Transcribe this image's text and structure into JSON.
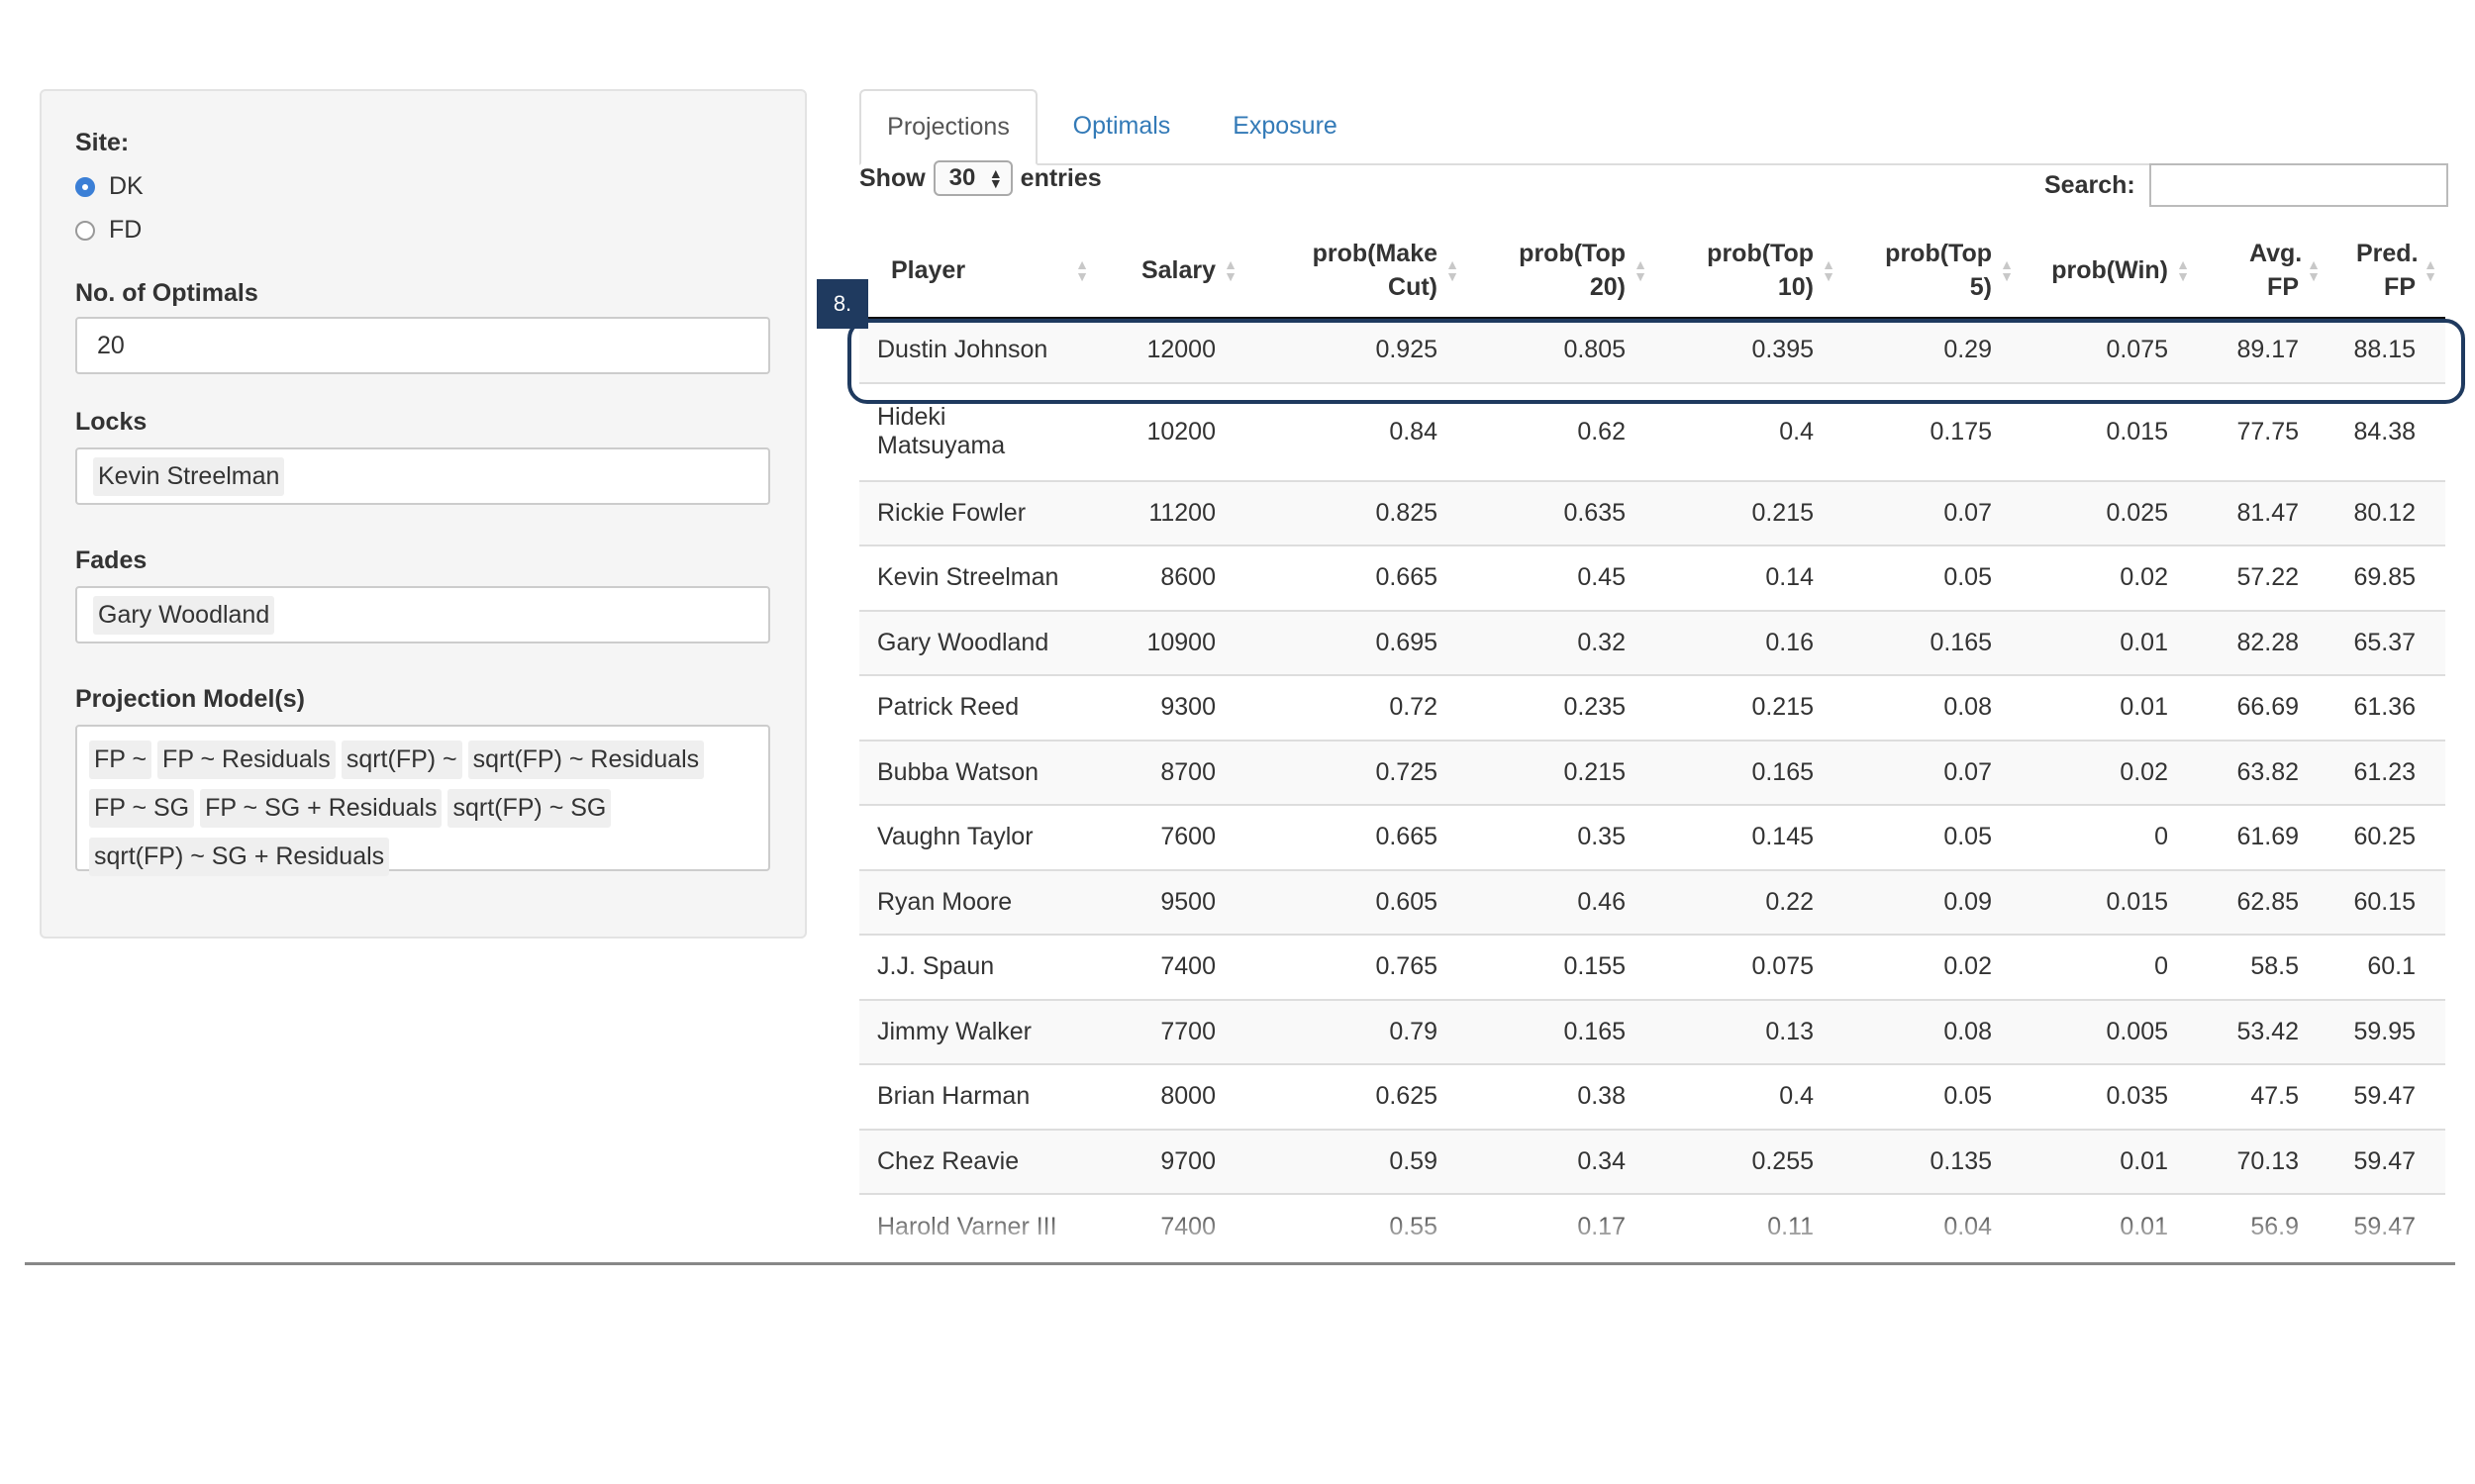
{
  "sidebar": {
    "site_label": "Site:",
    "site_options": [
      "DK",
      "FD"
    ],
    "site_selected": "DK",
    "optimals_label": "No. of Optimals",
    "optimals_value": "20",
    "locks_label": "Locks",
    "locks": [
      "Kevin Streelman"
    ],
    "fades_label": "Fades",
    "fades": [
      "Gary Woodland"
    ],
    "models_label": "Projection Model(s)",
    "models": [
      "FP ~",
      "FP ~ Residuals",
      "sqrt(FP) ~",
      "sqrt(FP) ~ Residuals",
      "FP ~ SG",
      "FP ~ SG + Residuals",
      "sqrt(FP) ~ SG",
      "sqrt(FP) ~ SG + Residuals"
    ]
  },
  "tabs": [
    "Projections",
    "Optimals",
    "Exposure"
  ],
  "active_tab": "Projections",
  "controls": {
    "show_label": "Show",
    "entries_value": "30",
    "entries_label": "entries",
    "search_label": "Search:"
  },
  "table": {
    "headers": [
      "Player",
      "Salary",
      "prob(Make Cut)",
      "prob(Top 20)",
      "prob(Top 10)",
      "prob(Top 5)",
      "prob(Win)",
      "Avg. FP",
      "Pred. FP"
    ],
    "rows": [
      [
        "Dustin Johnson",
        "12000",
        "0.925",
        "0.805",
        "0.395",
        "0.29",
        "0.075",
        "89.17",
        "88.15"
      ],
      [
        "Hideki Matsuyama",
        "10200",
        "0.84",
        "0.62",
        "0.4",
        "0.175",
        "0.015",
        "77.75",
        "84.38"
      ],
      [
        "Rickie Fowler",
        "11200",
        "0.825",
        "0.635",
        "0.215",
        "0.07",
        "0.025",
        "81.47",
        "80.12"
      ],
      [
        "Kevin Streelman",
        "8600",
        "0.665",
        "0.45",
        "0.14",
        "0.05",
        "0.02",
        "57.22",
        "69.85"
      ],
      [
        "Gary Woodland",
        "10900",
        "0.695",
        "0.32",
        "0.16",
        "0.165",
        "0.01",
        "82.28",
        "65.37"
      ],
      [
        "Patrick Reed",
        "9300",
        "0.72",
        "0.235",
        "0.215",
        "0.08",
        "0.01",
        "66.69",
        "61.36"
      ],
      [
        "Bubba Watson",
        "8700",
        "0.725",
        "0.215",
        "0.165",
        "0.07",
        "0.02",
        "63.82",
        "61.23"
      ],
      [
        "Vaughn Taylor",
        "7600",
        "0.665",
        "0.35",
        "0.145",
        "0.05",
        "0",
        "61.69",
        "60.25"
      ],
      [
        "Ryan Moore",
        "9500",
        "0.605",
        "0.46",
        "0.22",
        "0.09",
        "0.015",
        "62.85",
        "60.15"
      ],
      [
        "J.J. Spaun",
        "7400",
        "0.765",
        "0.155",
        "0.075",
        "0.02",
        "0",
        "58.5",
        "60.1"
      ],
      [
        "Jimmy Walker",
        "7700",
        "0.79",
        "0.165",
        "0.13",
        "0.08",
        "0.005",
        "53.42",
        "59.95"
      ],
      [
        "Brian Harman",
        "8000",
        "0.625",
        "0.38",
        "0.4",
        "0.05",
        "0.035",
        "47.5",
        "59.47"
      ],
      [
        "Chez Reavie",
        "9700",
        "0.59",
        "0.34",
        "0.255",
        "0.135",
        "0.01",
        "70.13",
        "59.47"
      ],
      [
        "Harold Varner III",
        "7400",
        "0.55",
        "0.17",
        "0.11",
        "0.04",
        "0.01",
        "56.9",
        "59.47"
      ]
    ]
  },
  "annotation": {
    "badge": "8."
  },
  "colors": {
    "accent": "#337ab7",
    "highlight": "#1f3a5f",
    "radio": "#3b7fd6"
  }
}
